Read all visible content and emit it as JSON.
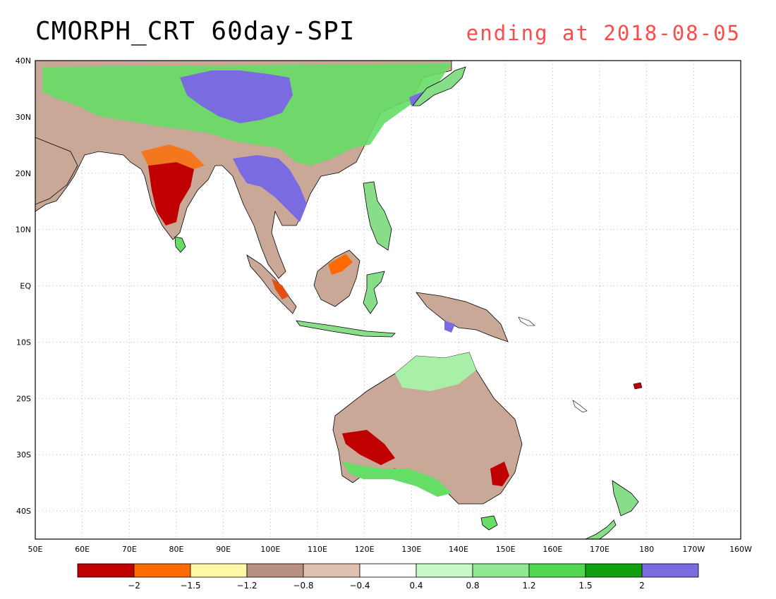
{
  "title": "CMORPH_CRT 60day-SPI",
  "subtitle": "ending at 2018-08-05",
  "map": {
    "lon_range": [
      50,
      200
    ],
    "lat_range": [
      -45,
      40
    ],
    "lat_labels": [
      {
        "lat": 40,
        "text": "40N"
      },
      {
        "lat": 30,
        "text": "30N"
      },
      {
        "lat": 20,
        "text": "20N"
      },
      {
        "lat": 10,
        "text": "10N"
      },
      {
        "lat": 0,
        "text": "EQ"
      },
      {
        "lat": -10,
        "text": "10S"
      },
      {
        "lat": -20,
        "text": "20S"
      },
      {
        "lat": -30,
        "text": "30S"
      },
      {
        "lat": -40,
        "text": "40S"
      }
    ],
    "lon_labels": [
      {
        "lon": 50,
        "text": "50E"
      },
      {
        "lon": 60,
        "text": "60E"
      },
      {
        "lon": 70,
        "text": "70E"
      },
      {
        "lon": 80,
        "text": "80E"
      },
      {
        "lon": 90,
        "text": "90E"
      },
      {
        "lon": 100,
        "text": "100E"
      },
      {
        "lon": 110,
        "text": "110E"
      },
      {
        "lon": 120,
        "text": "120E"
      },
      {
        "lon": 130,
        "text": "130E"
      },
      {
        "lon": 140,
        "text": "140E"
      },
      {
        "lon": 150,
        "text": "150E"
      },
      {
        "lon": 160,
        "text": "160E"
      },
      {
        "lon": 170,
        "text": "170E"
      },
      {
        "lon": 180,
        "text": "180"
      },
      {
        "lon": 190,
        "text": "170W"
      },
      {
        "lon": 200,
        "text": "160W"
      }
    ],
    "grid": "dotted"
  },
  "colorbar": {
    "colors": [
      "#c00000",
      "#ff6a00",
      "#fff8a8",
      "#b89080",
      "#e0c0b0",
      "#ffffff",
      "#c8f8c8",
      "#90e890",
      "#50d850",
      "#10a010",
      "#7b6be0"
    ],
    "labels": [
      "-2",
      "-1.5",
      "-1.2",
      "-0.8",
      "-0.4",
      "0.4",
      "0.8",
      "1.2",
      "1.5",
      "2"
    ]
  }
}
